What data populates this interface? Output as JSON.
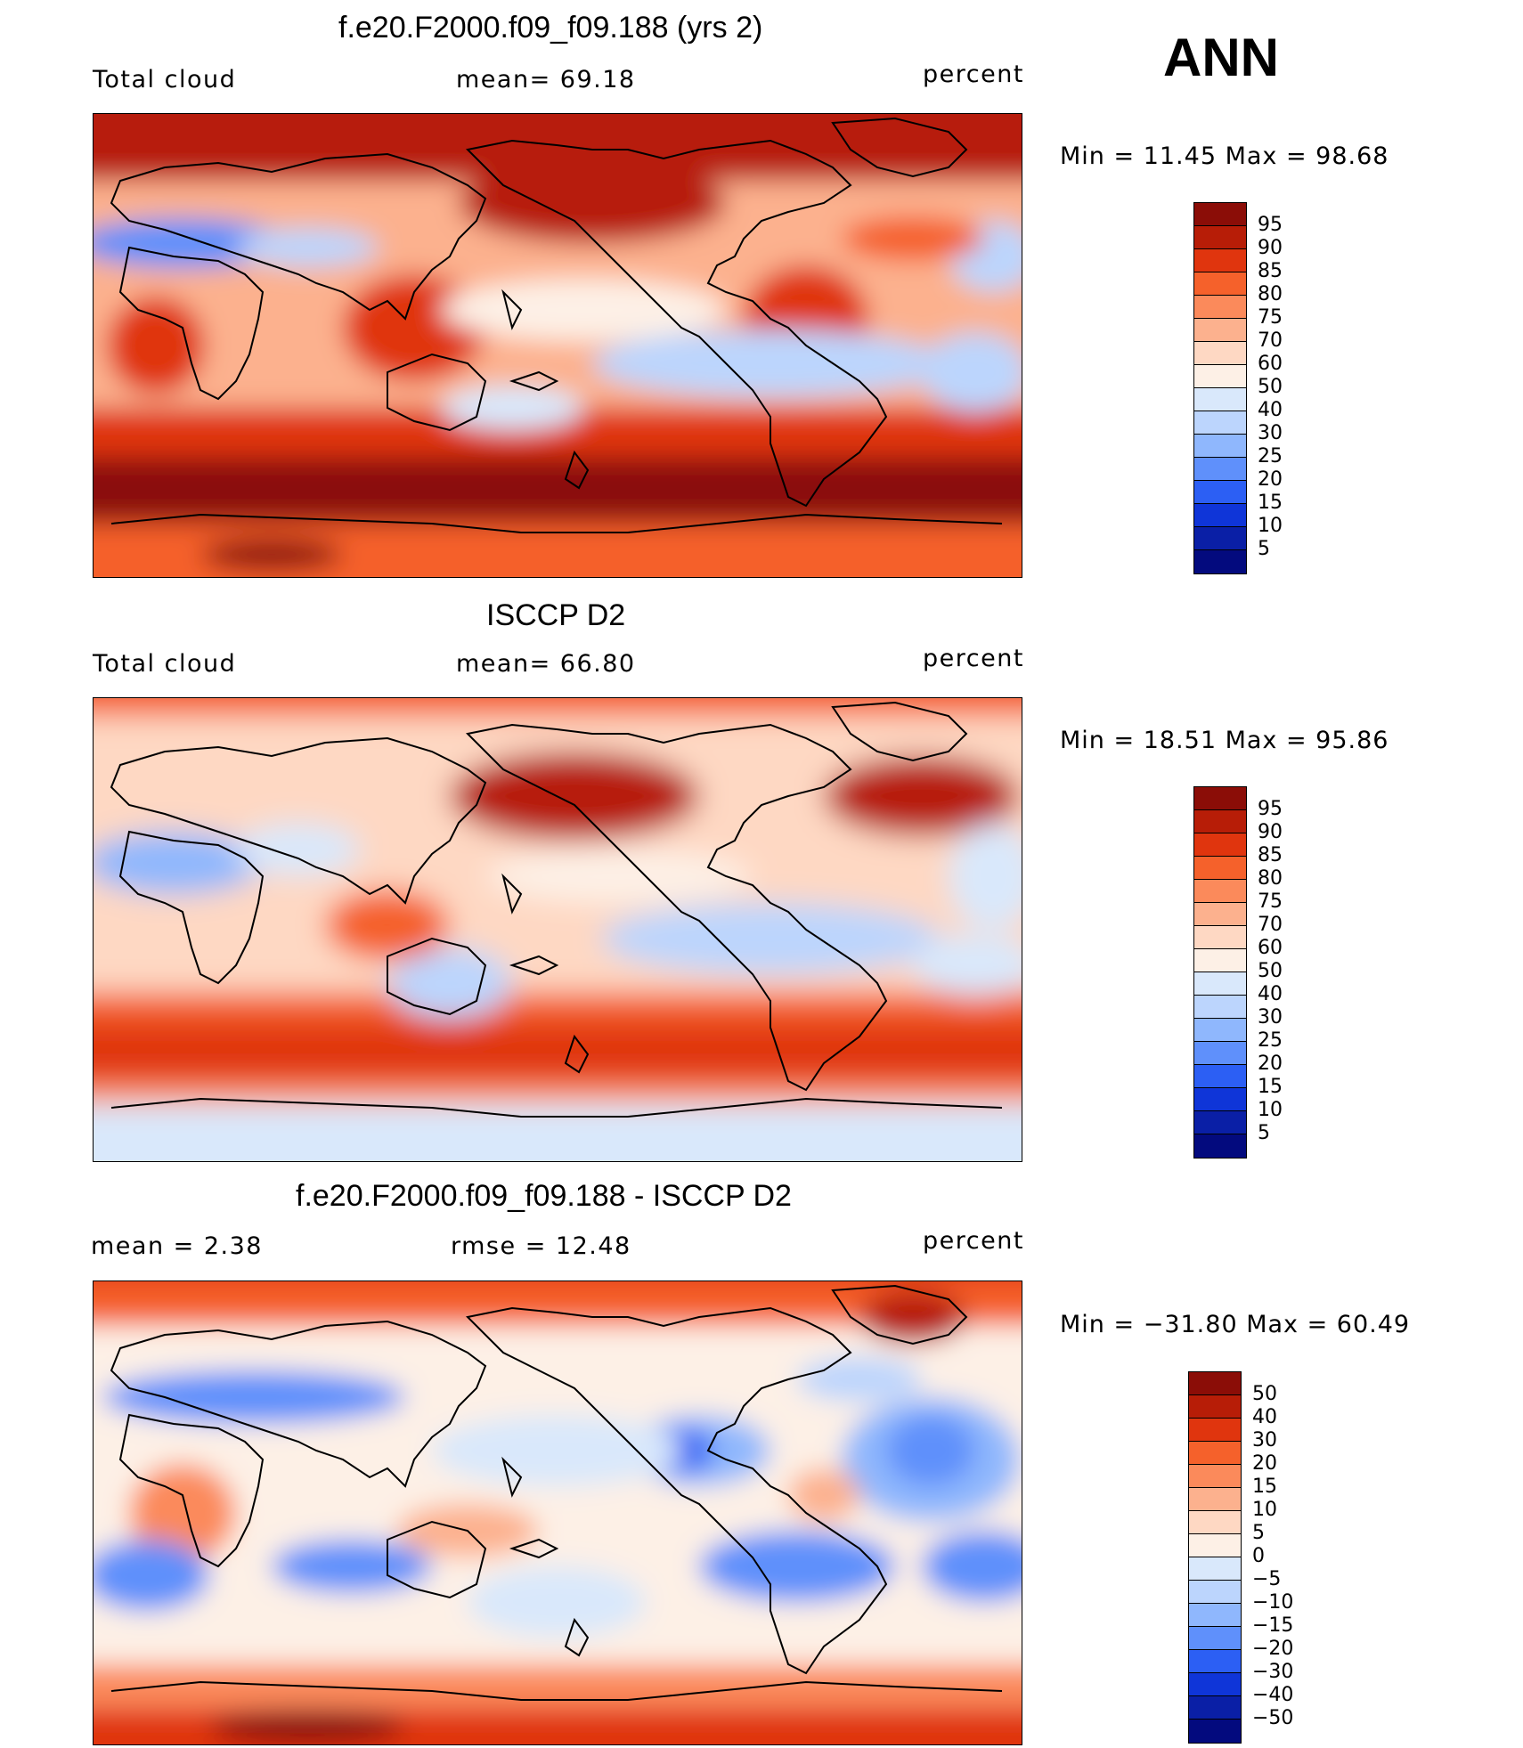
{
  "season": "ANN",
  "palette": {
    "cloud": [
      "#8b0d07",
      "#b71d07",
      "#e0350e",
      "#f5612b",
      "#fb8a5b",
      "#fcb18e",
      "#fed8c3",
      "#fdf0e6",
      "#d9e8fb",
      "#bcd5fd",
      "#8fb7fd",
      "#5f90fb",
      "#2c5ff4",
      "#0f35d8",
      "#0a1fa6",
      "#030a7e"
    ],
    "diff": [
      "#8b0d07",
      "#b71d07",
      "#e0350e",
      "#f5612b",
      "#fb8a5b",
      "#fcb18e",
      "#fed8c3",
      "#fdf0e6",
      "#d9e8fb",
      "#bcd5fd",
      "#8fb7fd",
      "#5f90fb",
      "#2c5ff4",
      "#0f35d8",
      "#0a1fa6",
      "#030a7e"
    ]
  },
  "panels": [
    {
      "title": "f.e20.F2000.f09_f09.188 (yrs 2)",
      "left_label": "Total cloud",
      "center_label": "mean=   69.18",
      "units": "percent",
      "min_max": "Min  =    11.45  Max  =    98.68",
      "colorbar_ticks": [
        "95",
        "90",
        "85",
        "80",
        "75",
        "70",
        "60",
        "50",
        "40",
        "30",
        "25",
        "20",
        "15",
        "10",
        "5"
      ]
    },
    {
      "title": "ISCCP D2",
      "left_label": "Total cloud",
      "center_label": "mean=   66.80",
      "units": "percent",
      "min_max": "Min  =    18.51  Max  =    95.86",
      "colorbar_ticks": [
        "95",
        "90",
        "85",
        "80",
        "75",
        "70",
        "60",
        "50",
        "40",
        "30",
        "25",
        "20",
        "15",
        "10",
        "5"
      ]
    },
    {
      "title": "f.e20.F2000.f09_f09.188 - ISCCP D2",
      "left_label": "mean  =     2.38",
      "center_label": "rmse  =    12.48",
      "units": "percent",
      "min_max": "Min  =  −31.80  Max  =    60.49",
      "colorbar_ticks": [
        "50",
        "40",
        "30",
        "20",
        "15",
        "10",
        "5",
        "0",
        "−5",
        "−10",
        "−15",
        "−20",
        "−30",
        "−40",
        "−50"
      ]
    }
  ]
}
